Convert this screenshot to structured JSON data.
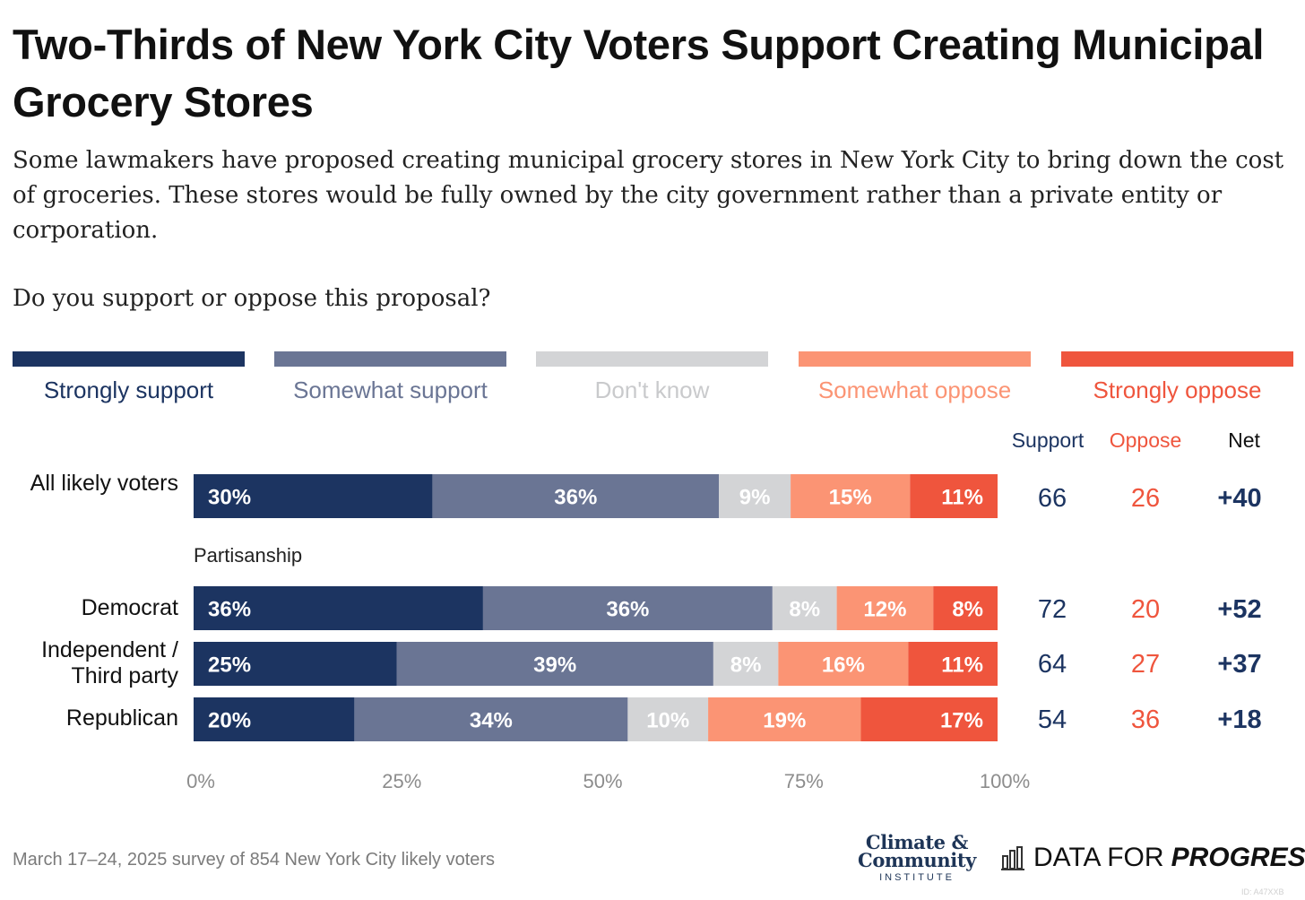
{
  "title": "Two-Thirds of New York City Voters Support Creating Municipal Grocery Stores",
  "subtitle": "Some lawmakers have proposed creating municipal grocery stores in New York City to bring down the cost of groceries. These stores would be fully owned by the city government rather than a private entity or corporation.",
  "question": "Do you support or oppose this proposal?",
  "columns": {
    "support": "Support",
    "oppose": "Oppose",
    "net": "Net"
  },
  "group_label": "Partisanship",
  "footer_note": "March 17–24, 2025 survey of 854 New York City likely voters",
  "logos": {
    "cci_line1": "Climate &",
    "cci_line2": "Community",
    "cci_line3": "INSTITUTE",
    "dfp_light": "DATA FOR",
    "dfp_strong": "PROGRESS",
    "dfp_icon": "bar-chart-icon"
  },
  "watermark": "ID: A47XXB",
  "colors": {
    "strongly_support": "#1c3461",
    "somewhat_support": "#6a7594",
    "dont_know": "#d3d4d6",
    "somewhat_oppose": "#fb9474",
    "strongly_oppose": "#ef553d",
    "support_text": "#1c3461",
    "oppose_text": "#ef553d"
  },
  "chart_data": {
    "type": "bar",
    "orientation": "horizontal",
    "stacked": true,
    "legend_placement": "top",
    "xlim": [
      0,
      100
    ],
    "x_ticks": [
      "0%",
      "25%",
      "50%",
      "75%",
      "100%"
    ],
    "categories": [
      "All likely voters",
      "Democrat",
      "Independent / Third party",
      "Republican"
    ],
    "series": [
      {
        "name": "Strongly support",
        "values": [
          30,
          36,
          25,
          20
        ],
        "labels": [
          "30%",
          "36%",
          "25%",
          "20%"
        ]
      },
      {
        "name": "Somewhat support",
        "values": [
          36,
          36,
          39,
          34
        ],
        "labels": [
          "36%",
          "36%",
          "39%",
          "34%"
        ]
      },
      {
        "name": "Don't know",
        "values": [
          9,
          8,
          8,
          10
        ],
        "labels": [
          "9%",
          "8%",
          "8%",
          "10%"
        ]
      },
      {
        "name": "Somewhat oppose",
        "values": [
          15,
          12,
          16,
          19
        ],
        "labels": [
          "15%",
          "12%",
          "16%",
          "19%"
        ]
      },
      {
        "name": "Strongly oppose",
        "values": [
          11,
          8,
          11,
          17
        ],
        "labels": [
          "11%",
          "8%",
          "11%",
          "17%"
        ]
      }
    ],
    "support": [
      "66",
      "72",
      "64",
      "54"
    ],
    "oppose": [
      "26",
      "20",
      "27",
      "36"
    ],
    "net": [
      "+40",
      "+52",
      "+37",
      "+18"
    ]
  }
}
